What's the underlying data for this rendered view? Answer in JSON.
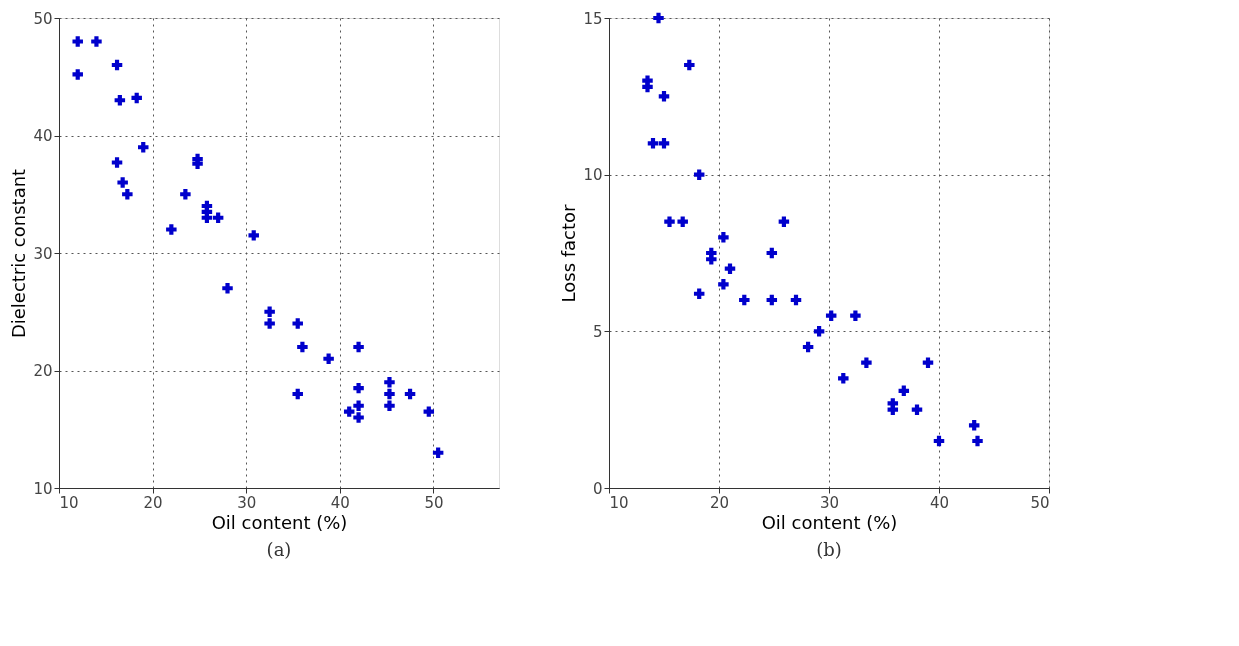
{
  "chart_data": [
    {
      "type": "scatter",
      "xlabel": "Oil content (%)",
      "ylabel": "Dielectric constant",
      "annotations": [
        "(a)"
      ],
      "xlim": [
        10,
        57
      ],
      "xticks": [
        10,
        20,
        30,
        40,
        50
      ],
      "ylim": [
        10,
        50
      ],
      "yticks": [
        10,
        20,
        30,
        40,
        50
      ],
      "grid": true,
      "marker": "cross",
      "series": [
        {
          "color": "#0000cc",
          "x": [
            12,
            14,
            12,
            16.2,
            16.5,
            18.3,
            19,
            16.2,
            16.8,
            17.3,
            22,
            23.5,
            24.8,
            24.8,
            25.8,
            25.8,
            25.8,
            27,
            30.8,
            28,
            32.5,
            32.5,
            35.5,
            36,
            38.8,
            35.5,
            42,
            41,
            42,
            42,
            42,
            45.3,
            45.3,
            45.3,
            47.5,
            49.5,
            50.5
          ],
          "values": [
            48,
            48,
            45.2,
            46,
            43,
            43.2,
            39,
            37.7,
            36,
            35,
            32,
            35,
            38,
            37.6,
            34,
            33.5,
            33,
            33,
            31.5,
            27,
            25,
            24,
            24,
            22,
            21,
            18,
            22,
            16.5,
            18.5,
            17,
            16,
            19,
            18,
            17,
            18,
            16.5,
            13
          ]
        }
      ]
    },
    {
      "type": "scatter",
      "xlabel": "Oil content (%)",
      "ylabel": "Loss factor",
      "annotations": [
        "(b)"
      ],
      "xlim": [
        10,
        50
      ],
      "xticks": [
        10,
        20,
        30,
        40,
        50
      ],
      "ylim": [
        0,
        15
      ],
      "yticks": [
        0,
        5,
        10,
        15
      ],
      "grid": true,
      "marker": "cross",
      "series": [
        {
          "color": "#0000cc",
          "x": [
            14.5,
            13.5,
            13.5,
            17.3,
            15,
            14,
            15,
            18.2,
            15.5,
            16.7,
            19.3,
            19.3,
            20.4,
            21,
            25.9,
            24.8,
            18.2,
            20.4,
            22.3,
            24.8,
            27,
            28.1,
            29.1,
            30.2,
            32.4,
            31.3,
            33.4,
            35.8,
            35.8,
            36.8,
            38,
            39,
            40,
            43.2,
            43.5
          ],
          "values": [
            15,
            13,
            12.8,
            13.5,
            12.5,
            11,
            11,
            10,
            8.5,
            8.5,
            7.5,
            7.3,
            8,
            7,
            8.5,
            7.5,
            6.2,
            6.5,
            6,
            6,
            6,
            4.5,
            5,
            5.5,
            5.5,
            3.5,
            4,
            2.5,
            2.7,
            3.1,
            2.5,
            4,
            1.5,
            2,
            1.5
          ]
        }
      ]
    }
  ]
}
